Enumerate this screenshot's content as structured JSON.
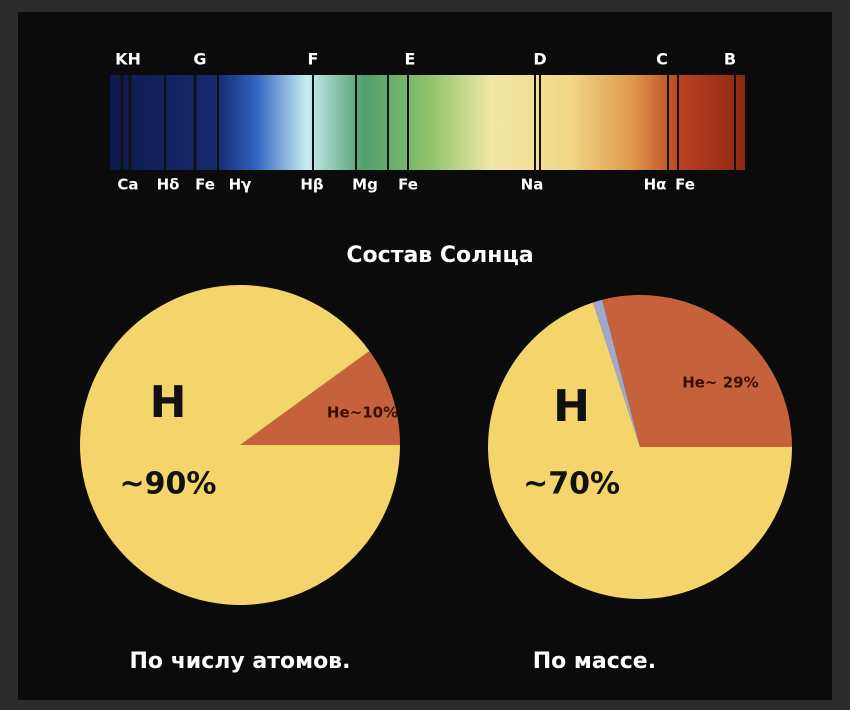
{
  "spectrum": {
    "top_labels": [
      "KH",
      "G",
      "F",
      "E",
      "D",
      "C",
      "B"
    ],
    "bottom_labels": [
      "Ca",
      "Hδ",
      "Fe",
      "Hγ",
      "Hβ",
      "Mg",
      "Fe",
      "Na",
      "Hα",
      "Fe"
    ]
  },
  "title": "Состав Солнца",
  "chart_data": [
    {
      "type": "pie",
      "categories": [
        "H",
        null
      ],
      "values": [
        90,
        10
      ],
      "value_labels": [
        "~90%",
        "He~10%"
      ],
      "colors": [
        "#f4d56c",
        "#c6623b"
      ],
      "xlabel": "По числу атомов."
    },
    {
      "type": "pie",
      "categories": [
        "H",
        null,
        null
      ],
      "values": [
        70,
        1,
        29
      ],
      "value_labels": [
        "~70%",
        null,
        "He~ 29%"
      ],
      "colors": [
        "#f4d56c",
        "#9ea9cc",
        "#c6623b"
      ],
      "xlabel": "По массе."
    }
  ]
}
